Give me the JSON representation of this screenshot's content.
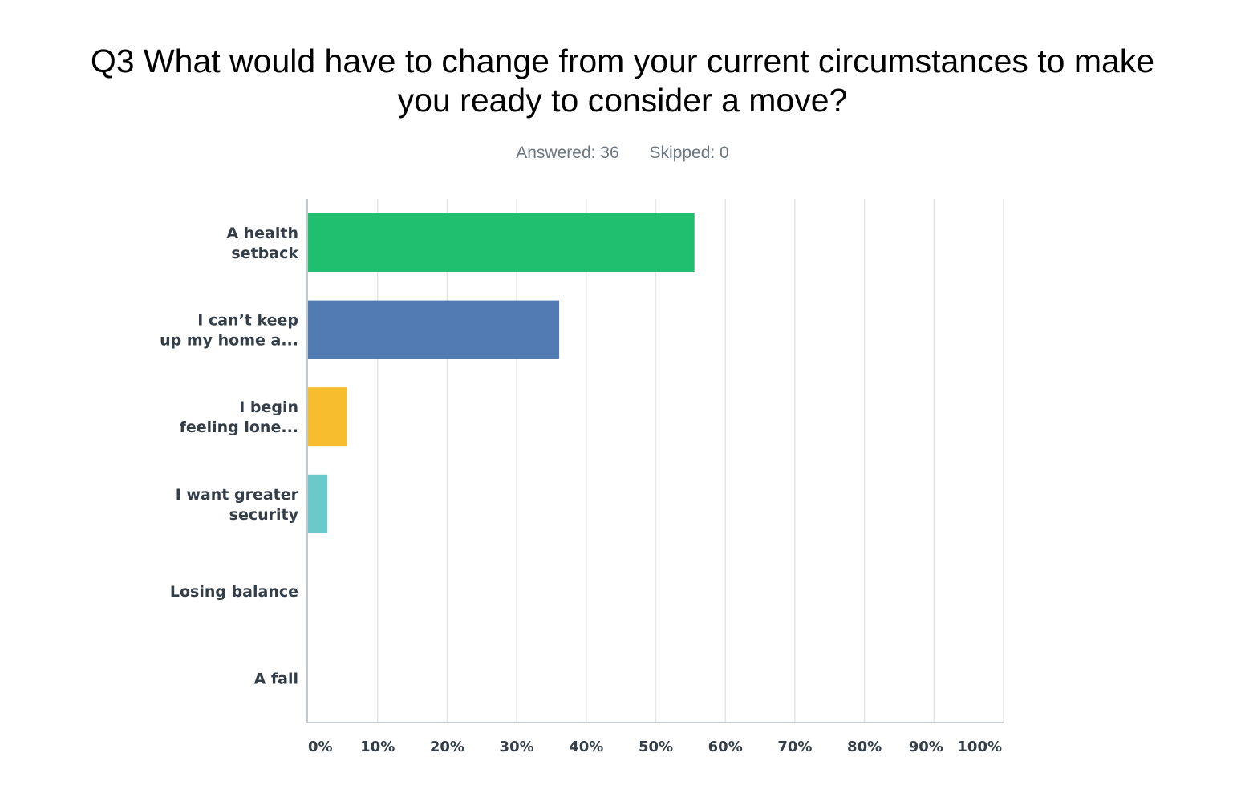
{
  "header": {
    "title_line1": "Q3 What would have to change from your current circumstances to make",
    "title_line2": "you ready to consider a move?",
    "answered": "Answered: 36",
    "skipped": "Skipped: 0"
  },
  "chart_data": {
    "type": "bar",
    "orientation": "horizontal",
    "categories": [
      [
        "A health",
        "setback"
      ],
      [
        "I can’t keep",
        "up my home a..."
      ],
      [
        "I begin",
        "feeling lone..."
      ],
      [
        "I want greater",
        "security"
      ],
      [
        "Losing balance"
      ],
      [
        "A fall"
      ]
    ],
    "values": [
      55.56,
      36.11,
      5.56,
      2.78,
      0,
      0
    ],
    "colors": [
      "#20bf6f",
      "#527bb3",
      "#f7bd2e",
      "#6ac9c9",
      "#d1d5d8",
      "#d1d5d8"
    ],
    "x_ticks": [
      "0%",
      "10%",
      "20%",
      "30%",
      "40%",
      "50%",
      "60%",
      "70%",
      "80%",
      "90%",
      "100%"
    ],
    "xlim": [
      0,
      100
    ],
    "grid": true,
    "grid_color": "#e3e6e8",
    "axis_color": "#c3c8cc"
  }
}
